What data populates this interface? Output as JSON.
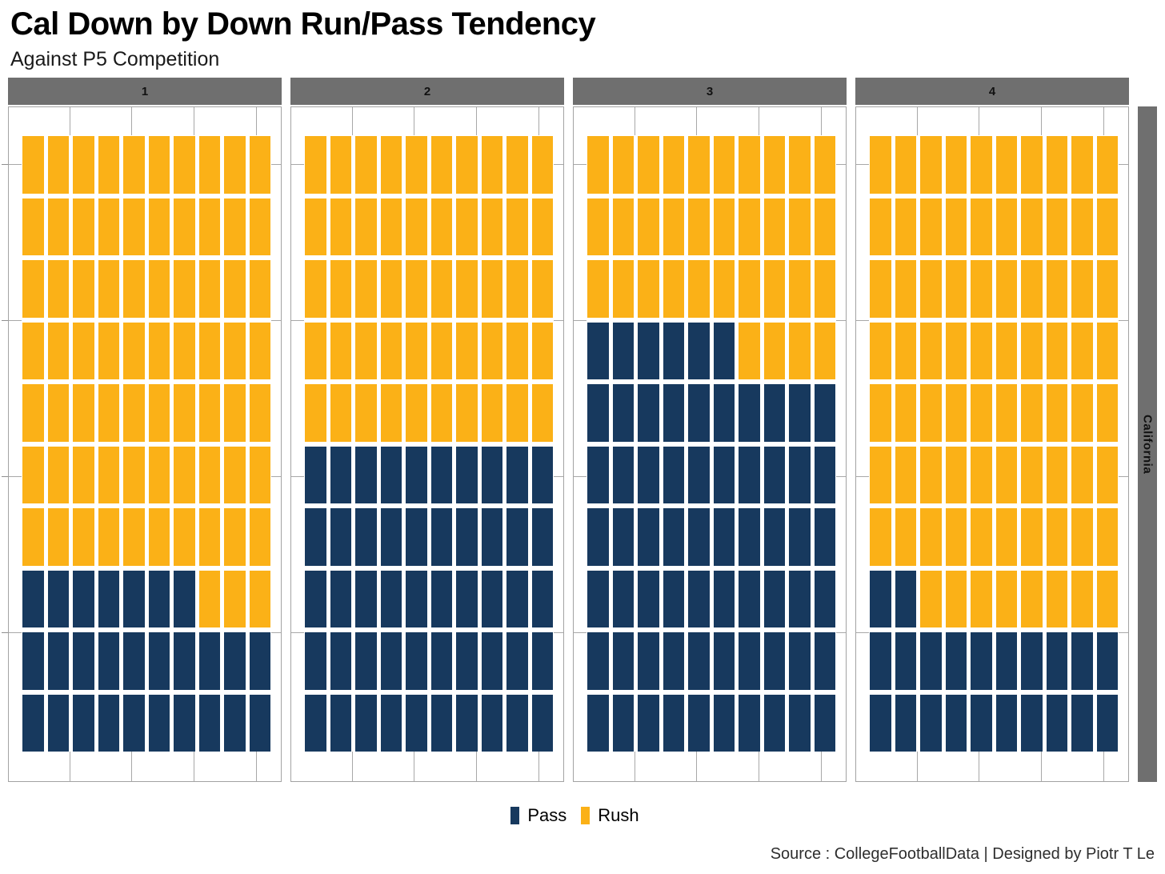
{
  "title": "Cal Down by Down Run/Pass Tendency",
  "subtitle": "Against P5 Competition",
  "caption": "Source : CollegeFootballData | Designed by Piotr T Le",
  "right_strip_label": "California",
  "legend": {
    "position": "bottom",
    "items": [
      {
        "label": "Pass",
        "color": "#17395E"
      },
      {
        "label": "Rush",
        "color": "#FBB117"
      }
    ]
  },
  "colors": {
    "pass": "#17395E",
    "rush": "#FBB117",
    "strip_gray": "#6F6F6F",
    "panel_border": "#A3A3A3",
    "gridline": "#A8A8A8",
    "background": "#FFFFFF"
  },
  "chart_data": {
    "type": "waffle",
    "title": "Cal Down by Down Run/Pass Tendency",
    "subtitle": "Against P5 Competition",
    "facet_variable": "down",
    "grid": {
      "rows": 10,
      "cols": 10,
      "square_unit_percent": 1,
      "fill_origin": "bottom-left, row by row"
    },
    "categories": [
      "1",
      "2",
      "3",
      "4"
    ],
    "series": [
      {
        "name": "Pass",
        "values": [
          27,
          50,
          66,
          22
        ]
      },
      {
        "name": "Rush",
        "values": [
          73,
          50,
          34,
          78
        ]
      }
    ],
    "facets": [
      {
        "label": "1",
        "pass": 27,
        "rush": 73
      },
      {
        "label": "2",
        "pass": 50,
        "rush": 50
      },
      {
        "label": "3",
        "pass": 66,
        "rush": 34
      },
      {
        "label": "4",
        "pass": 22,
        "rush": 78
      }
    ],
    "legend_entries": [
      "Pass",
      "Rush"
    ],
    "right_strip_label": "California",
    "gridlines": "gray stubs at 25/50/75/100% of each axis, visible only in panel margins"
  }
}
